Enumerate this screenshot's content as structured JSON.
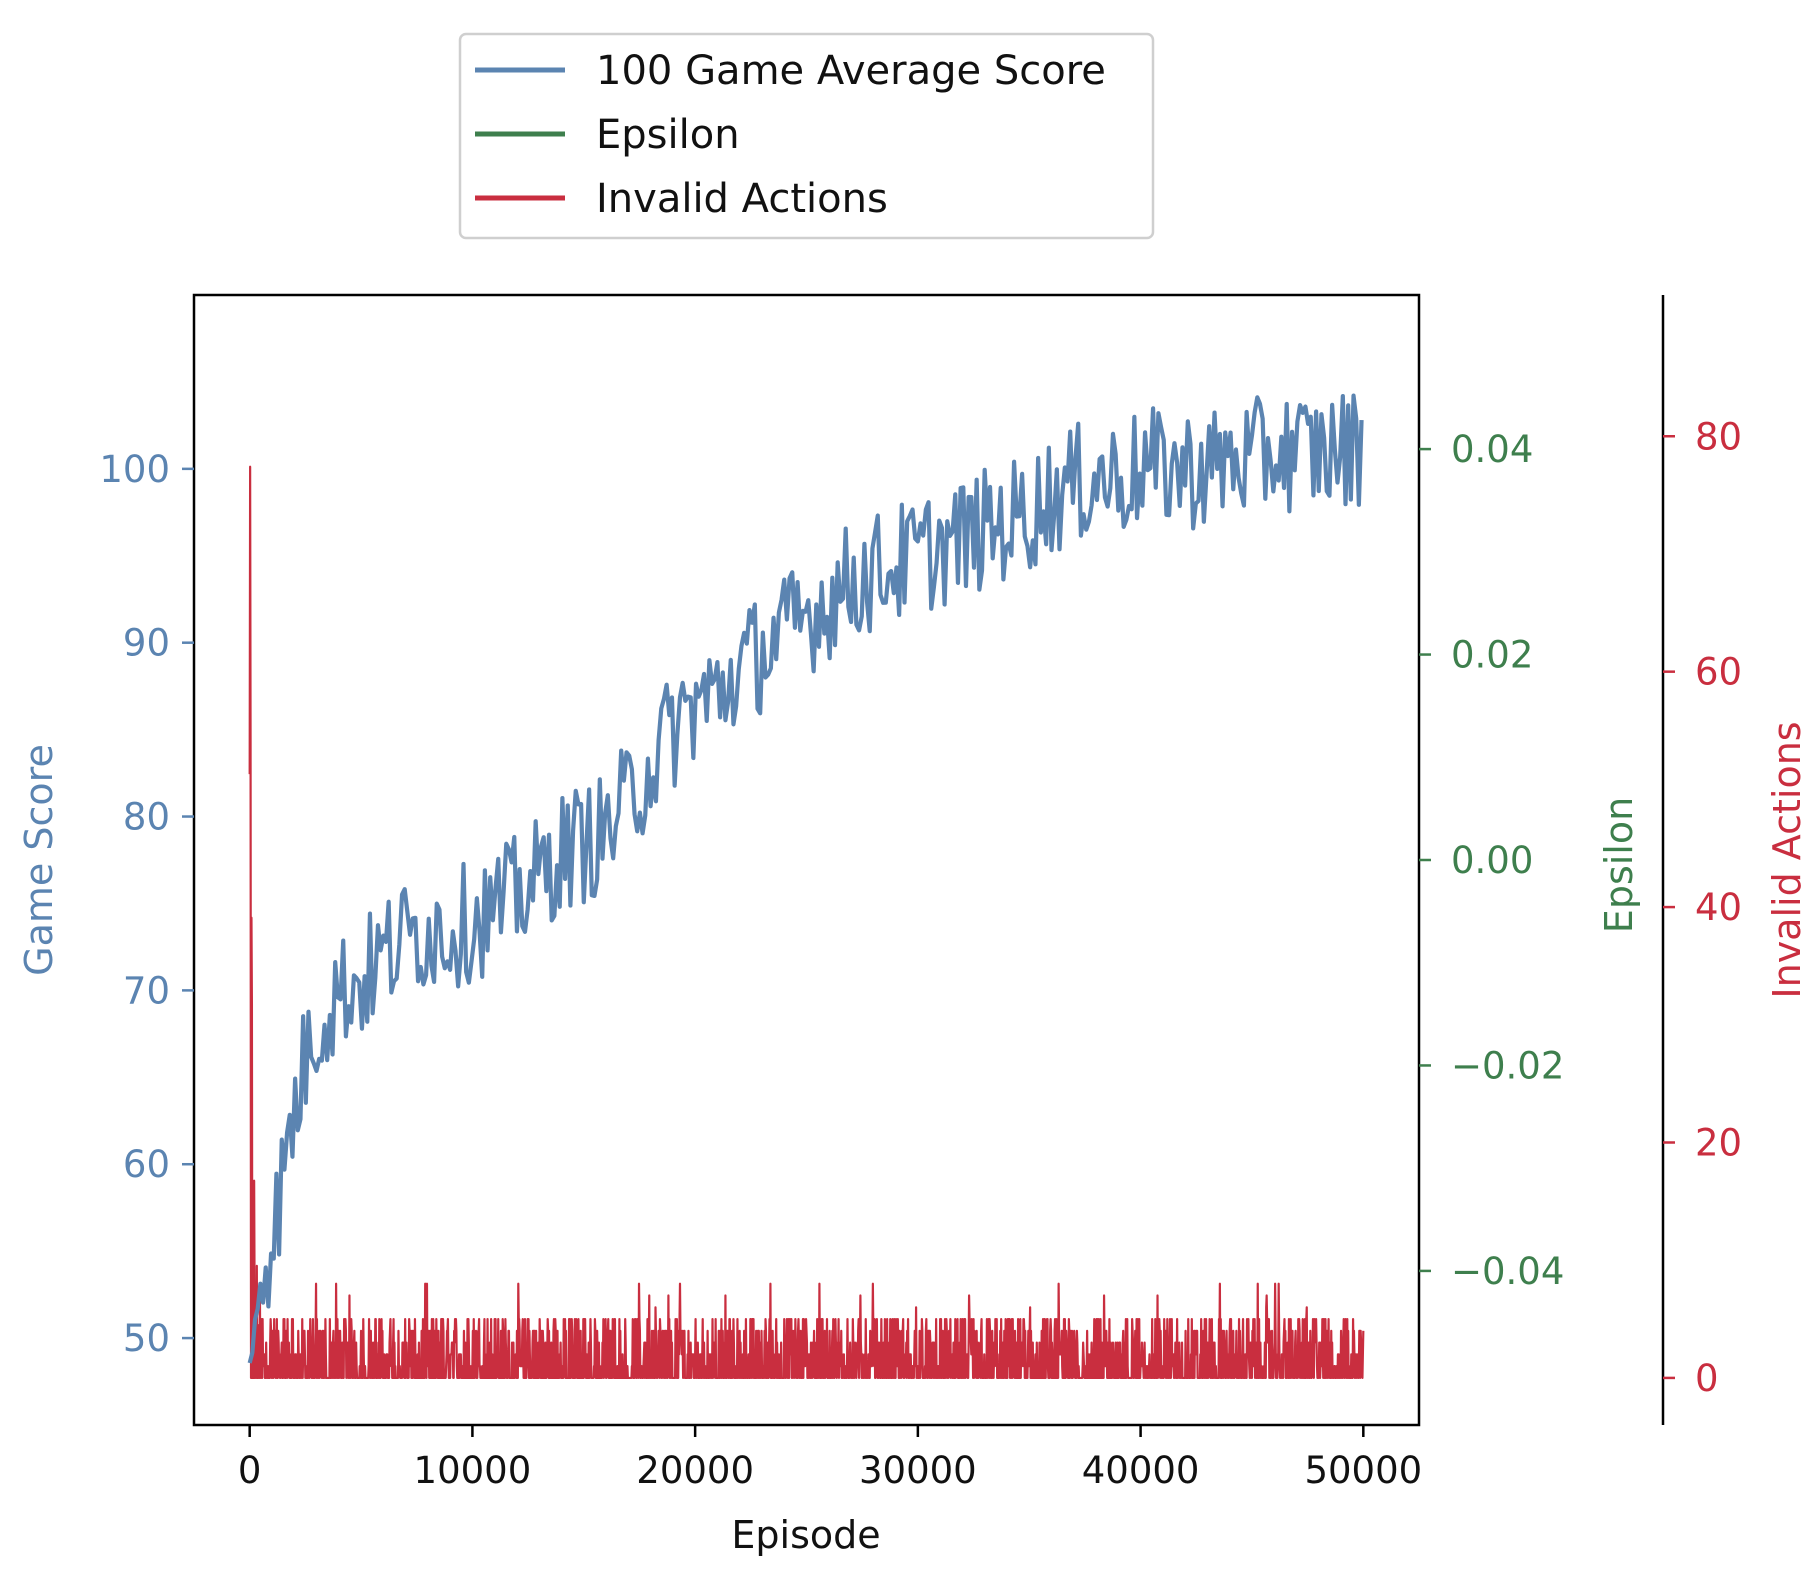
{
  "chart_data": {
    "type": "line",
    "xlabel": "Episode",
    "xlim": [
      -2500,
      52500
    ],
    "x_ticks": [
      0,
      10000,
      20000,
      30000,
      40000,
      50000
    ],
    "legend_position": "top-center, above plot",
    "axes": {
      "left": {
        "label": "Game Score",
        "color": "#5b84b1",
        "ylim": [
          45,
          110
        ],
        "ticks": [
          50,
          60,
          70,
          80,
          90,
          100
        ]
      },
      "right_inner": {
        "label": "Epsilon",
        "color": "#3e7f4d",
        "ylim": [
          -0.055,
          0.055
        ],
        "ticks": [
          0.04,
          0.02,
          0.0,
          -0.02,
          -0.04
        ],
        "tick_labels": [
          "0.04",
          "0.02",
          "0.00",
          "−0.02",
          "−0.04"
        ]
      },
      "right_outer": {
        "label": "Invalid Actions",
        "color": "#c92e3f",
        "ylim": [
          -4,
          92
        ],
        "ticks": [
          0,
          20,
          40,
          60,
          80
        ]
      }
    },
    "series": [
      {
        "name": "100 Game Average Score",
        "axis": "left",
        "color": "#5b84b1",
        "x": [
          0,
          400,
          800,
          1200,
          1600,
          2000,
          2500,
          3000,
          3500,
          4000,
          5000,
          6000,
          7000,
          8000,
          9000,
          10000,
          11000,
          12000,
          13000,
          14000,
          15000,
          16000,
          17000,
          18000,
          19000,
          20000,
          21000,
          22000,
          23000,
          24000,
          25000,
          26000,
          27000,
          28000,
          29000,
          30000,
          31000,
          32000,
          33000,
          34000,
          35000,
          36000,
          37000,
          38000,
          39000,
          40000,
          41000,
          42000,
          43000,
          44000,
          45000,
          46000,
          47000,
          48000,
          49000,
          50000
        ],
        "values": [
          48,
          53,
          55,
          57,
          60,
          63,
          66,
          68,
          69,
          70,
          70.5,
          72,
          73,
          73.5,
          73.5,
          74,
          74.5,
          75.5,
          76.5,
          78,
          78.5,
          79,
          81,
          83,
          85,
          86.5,
          87,
          88.5,
          89.5,
          90.5,
          91.5,
          92.5,
          93.5,
          94,
          94.5,
          95,
          95.5,
          96,
          96.5,
          97,
          97.5,
          98.5,
          99,
          99.5,
          99.5,
          100,
          100,
          100,
          100,
          100.5,
          100.5,
          101,
          101,
          101,
          101,
          101.5
        ],
        "noise_amplitude": 3.5
      },
      {
        "name": "Epsilon",
        "axis": "right_inner",
        "color": "#3e7f4d",
        "x": [],
        "values": []
      },
      {
        "name": "Invalid Actions",
        "axis": "right_outer",
        "color": "#c92e3f",
        "x": [
          0,
          50,
          120,
          250,
          500,
          50000
        ],
        "values": [
          88,
          62,
          28,
          12,
          6,
          6
        ],
        "band_min": 0,
        "band_typical_max": 5,
        "band_spike_max": 8
      }
    ]
  }
}
